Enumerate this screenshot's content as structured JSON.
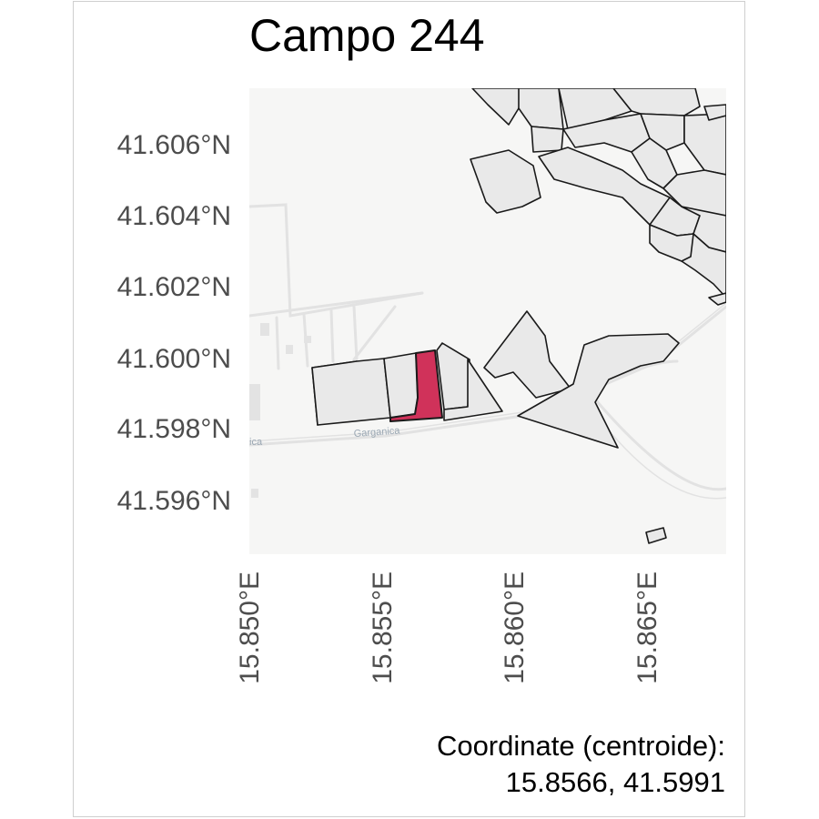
{
  "title": "Campo 244",
  "y_ticks": [
    "41.606°N",
    "41.604°N",
    "41.602°N",
    "41.600°N",
    "41.598°N",
    "41.596°N"
  ],
  "x_ticks": [
    "15.850°E",
    "15.855°E",
    "15.860°E",
    "15.865°E"
  ],
  "road_label": "Garganica",
  "road_label_partial": "ica",
  "caption": {
    "line1": "Coordinate (centroide):",
    "line2": "15.8566, 41.5991"
  },
  "colors": {
    "highlight_field": "#d0325a",
    "field_fill": "#e9e9e9",
    "field_stroke": "#1a1a1a",
    "basemap": "#f6f6f5",
    "roads": "#e0e0e0"
  }
}
